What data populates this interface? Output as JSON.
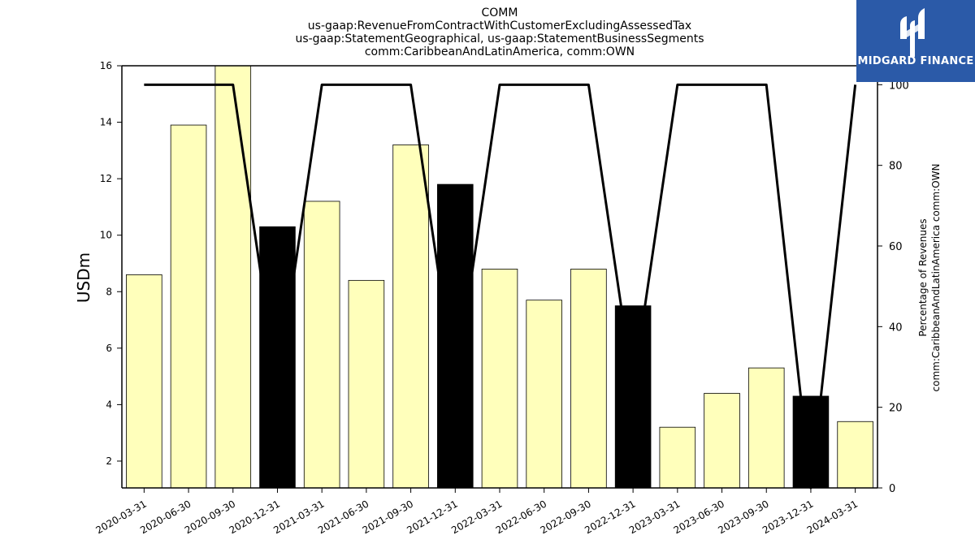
{
  "chart_data": {
    "type": "bar",
    "title_lines": [
      "COMM",
      "us-gaap:RevenueFromContractWithCustomerExcludingAssessedTax",
      "us-gaap:StatementGeographical, us-gaap:StatementBusinessSegments",
      "comm:CaribbeanAndLatinAmerica, comm:OWN"
    ],
    "ylabel": "USDm",
    "ylabel_right": [
      "Percentage of Revenues",
      "comm:CaribbeanAndLatinAmerica comm:OWN"
    ],
    "ylim": [
      1.05,
      16
    ],
    "ylim_right": [
      0,
      104.7
    ],
    "yticks": [
      2,
      4,
      6,
      8,
      10,
      12,
      14,
      16
    ],
    "yticks_right": [
      0,
      20,
      40,
      60,
      80,
      100
    ],
    "categories": [
      "2020-03-31",
      "2020-06-30",
      "2020-09-30",
      "2020-12-31",
      "2021-03-31",
      "2021-06-30",
      "2021-09-30",
      "2021-12-31",
      "2022-03-31",
      "2022-06-30",
      "2022-09-30",
      "2022-12-31",
      "2023-03-31",
      "2023-06-30",
      "2023-09-30",
      "2023-12-31",
      "2024-03-31"
    ],
    "series": [
      {
        "type": "bar",
        "values": [
          8.6,
          13.9,
          16.2,
          10.3,
          11.2,
          8.4,
          13.2,
          11.8,
          8.8,
          7.7,
          8.8,
          7.5,
          3.2,
          4.4,
          5.3,
          4.3,
          3.4
        ],
        "highlight": [
          false,
          false,
          false,
          true,
          false,
          false,
          false,
          true,
          false,
          false,
          false,
          true,
          false,
          false,
          false,
          true,
          false
        ]
      },
      {
        "type": "line",
        "axis": "right",
        "values": [
          100,
          100,
          100,
          25,
          100,
          100,
          100,
          25,
          100,
          100,
          100,
          25,
          100,
          100,
          100,
          0,
          100
        ]
      }
    ],
    "colors": {
      "bar": "#ffffbb",
      "bar_highlight": "#000000",
      "line": "#000000"
    }
  },
  "logo": {
    "text": "MIDGARD FINANCE",
    "color": "#2b5aa8"
  }
}
